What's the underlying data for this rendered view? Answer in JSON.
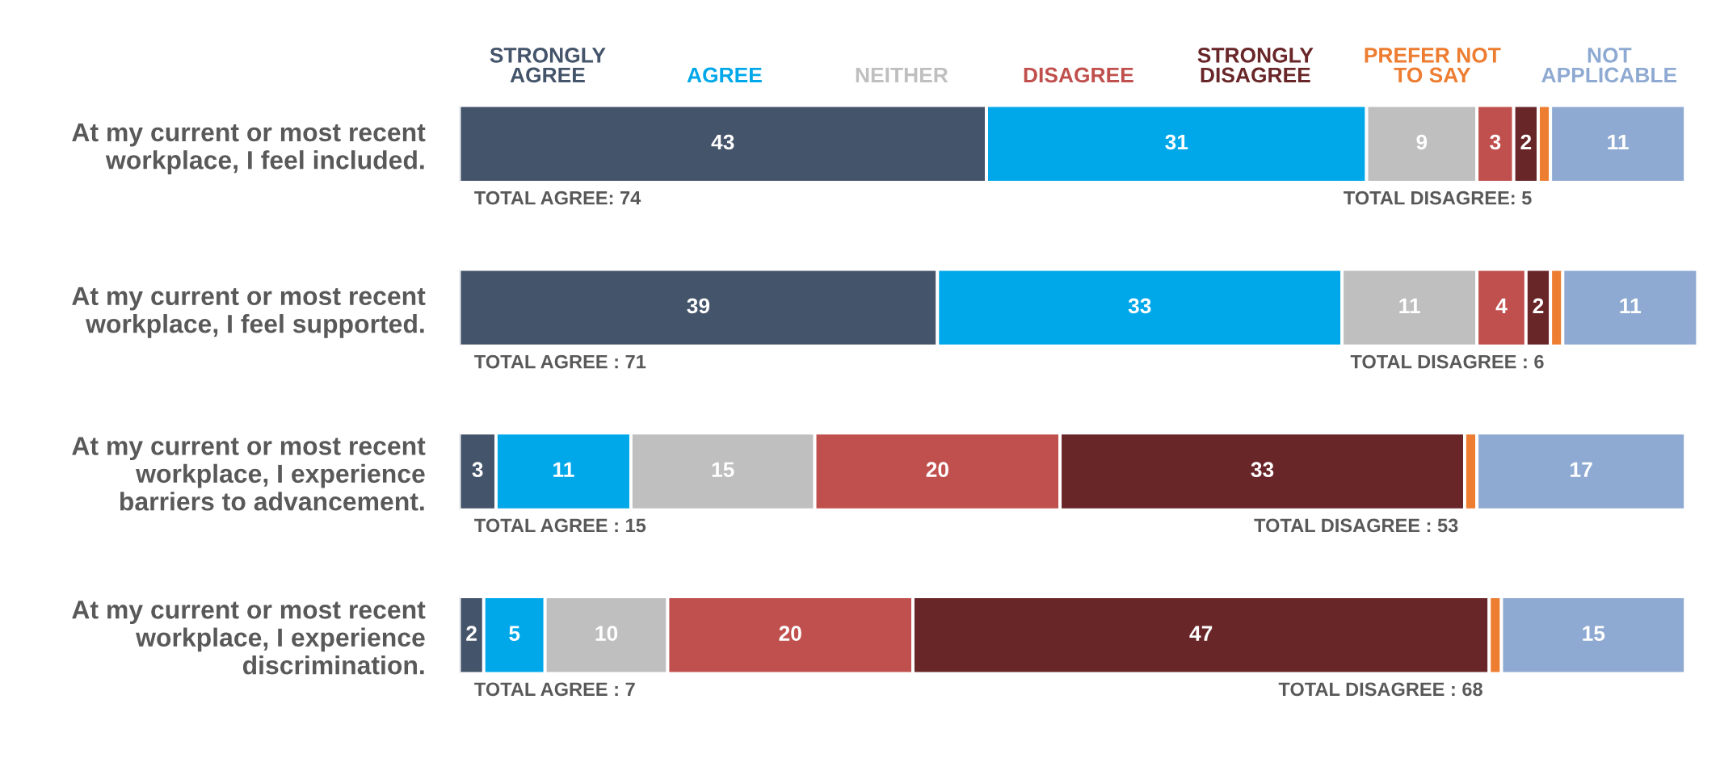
{
  "chart_data": {
    "type": "bar",
    "orientation": "horizontal",
    "stacked": true,
    "legend": "top",
    "grid": false,
    "tick_labels": "y",
    "categories": [
      "At my current or most recent\nworkplace, I feel included.",
      "At my current or most recent\nworkplace, I feel supported.",
      "At my current or most recent\nworkplace, I experience\nbarriers to advancement.",
      "At my current or most recent\nworkplace, I experience\ndiscrimination."
    ],
    "series": [
      {
        "name": "STRONGLY\nAGREE",
        "color": "#44546a",
        "values": [
          43,
          39,
          3,
          2
        ],
        "value_labels": [
          "43",
          "39",
          "3",
          "2"
        ]
      },
      {
        "name": "AGREE",
        "color": "#00a8ea",
        "values": [
          31,
          33,
          11,
          5
        ],
        "value_labels": [
          "31",
          "33",
          "11",
          "5"
        ]
      },
      {
        "name": "NEITHER",
        "color": "#bfbfbf",
        "values": [
          9,
          11,
          15,
          10
        ],
        "value_labels": [
          "9",
          "11",
          "15",
          "10"
        ]
      },
      {
        "name": "DISAGREE",
        "color": "#c0504d",
        "values": [
          3,
          4,
          20,
          20
        ],
        "value_labels": [
          "3",
          "4",
          "20",
          "20"
        ]
      },
      {
        "name": "STRONGLY\nDISAGREE",
        "color": "#692629",
        "values": [
          2,
          2,
          33,
          47
        ],
        "value_labels": [
          "2",
          "2",
          "33",
          "47"
        ]
      },
      {
        "name": "PREFER NOT\nTO SAY",
        "color": "#ed7d31",
        "values": [
          1,
          1,
          1,
          1
        ],
        "value_labels": [
          null,
          null,
          null,
          null
        ]
      },
      {
        "name": "NOT\nAPPLICABLE",
        "color": "#8faad2",
        "values": [
          11,
          11,
          17,
          15
        ],
        "value_labels": [
          "11",
          "11",
          "17",
          "15"
        ]
      }
    ],
    "annotations": [
      "TOTAL AGREE: 74",
      "TOTAL DISAGREE: 5",
      "TOTAL AGREE : 71",
      "TOTAL DISAGREE : 6",
      "TOTAL AGREE : 15",
      "TOTAL DISAGREE : 53",
      "TOTAL AGREE : 7",
      "TOTAL DISAGREE : 68"
    ]
  }
}
